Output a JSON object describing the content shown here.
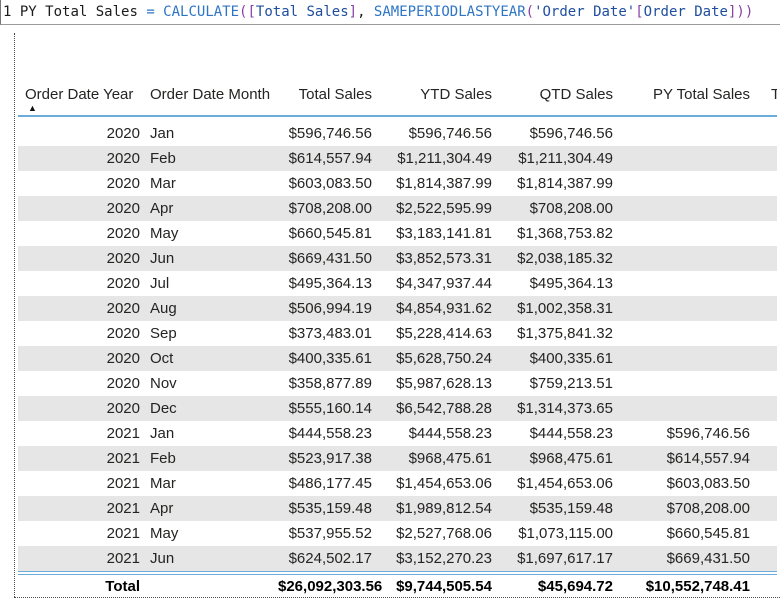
{
  "app": {
    "description": "Power BI DAX formula bar with table visual"
  },
  "formula_bar": {
    "line_number": "1",
    "formula_text": "PY Total Sales = CALCULATE([Total Sales], SAMEPERIODLASTYEAR('Order Date'[Order Date]))",
    "tokens": [
      {
        "t": "PY Total Sales ",
        "c": "text"
      },
      {
        "t": "= ",
        "c": "op"
      },
      {
        "t": "CALCULATE",
        "c": "fn"
      },
      {
        "t": "(",
        "c": "paren"
      },
      {
        "t": "[",
        "c": "paren"
      },
      {
        "t": "Total Sales",
        "c": "ref"
      },
      {
        "t": "]",
        "c": "paren"
      },
      {
        "t": ", ",
        "c": "text"
      },
      {
        "t": "SAMEPERIODLASTYEAR",
        "c": "fn"
      },
      {
        "t": "(",
        "c": "paren"
      },
      {
        "t": "'Order Date'",
        "c": "ref"
      },
      {
        "t": "[",
        "c": "paren"
      },
      {
        "t": "Order Date",
        "c": "ref"
      },
      {
        "t": "]",
        "c": "paren"
      },
      {
        "t": "))",
        "c": "paren"
      }
    ]
  },
  "table": {
    "sort_icon": "▲",
    "columns": [
      {
        "label": "Order Date Year",
        "sorted": "ascending"
      },
      {
        "label": "Order Date Month"
      },
      {
        "label": "Total Sales"
      },
      {
        "label": "YTD Sales"
      },
      {
        "label": "QTD Sales"
      },
      {
        "label": "PY Total Sales"
      },
      {
        "label": "T"
      }
    ],
    "rows": [
      {
        "year": "2020",
        "month": "Jan",
        "total_sales": "$596,746.56",
        "ytd_sales": "$596,746.56",
        "qtd_sales": "$596,746.56",
        "py_total_sales": ""
      },
      {
        "year": "2020",
        "month": "Feb",
        "total_sales": "$614,557.94",
        "ytd_sales": "$1,211,304.49",
        "qtd_sales": "$1,211,304.49",
        "py_total_sales": ""
      },
      {
        "year": "2020",
        "month": "Mar",
        "total_sales": "$603,083.50",
        "ytd_sales": "$1,814,387.99",
        "qtd_sales": "$1,814,387.99",
        "py_total_sales": ""
      },
      {
        "year": "2020",
        "month": "Apr",
        "total_sales": "$708,208.00",
        "ytd_sales": "$2,522,595.99",
        "qtd_sales": "$708,208.00",
        "py_total_sales": ""
      },
      {
        "year": "2020",
        "month": "May",
        "total_sales": "$660,545.81",
        "ytd_sales": "$3,183,141.81",
        "qtd_sales": "$1,368,753.82",
        "py_total_sales": ""
      },
      {
        "year": "2020",
        "month": "Jun",
        "total_sales": "$669,431.50",
        "ytd_sales": "$3,852,573.31",
        "qtd_sales": "$2,038,185.32",
        "py_total_sales": ""
      },
      {
        "year": "2020",
        "month": "Jul",
        "total_sales": "$495,364.13",
        "ytd_sales": "$4,347,937.44",
        "qtd_sales": "$495,364.13",
        "py_total_sales": ""
      },
      {
        "year": "2020",
        "month": "Aug",
        "total_sales": "$506,994.19",
        "ytd_sales": "$4,854,931.62",
        "qtd_sales": "$1,002,358.31",
        "py_total_sales": ""
      },
      {
        "year": "2020",
        "month": "Sep",
        "total_sales": "$373,483.01",
        "ytd_sales": "$5,228,414.63",
        "qtd_sales": "$1,375,841.32",
        "py_total_sales": ""
      },
      {
        "year": "2020",
        "month": "Oct",
        "total_sales": "$400,335.61",
        "ytd_sales": "$5,628,750.24",
        "qtd_sales": "$400,335.61",
        "py_total_sales": ""
      },
      {
        "year": "2020",
        "month": "Nov",
        "total_sales": "$358,877.89",
        "ytd_sales": "$5,987,628.13",
        "qtd_sales": "$759,213.51",
        "py_total_sales": ""
      },
      {
        "year": "2020",
        "month": "Dec",
        "total_sales": "$555,160.14",
        "ytd_sales": "$6,542,788.28",
        "qtd_sales": "$1,314,373.65",
        "py_total_sales": ""
      },
      {
        "year": "2021",
        "month": "Jan",
        "total_sales": "$444,558.23",
        "ytd_sales": "$444,558.23",
        "qtd_sales": "$444,558.23",
        "py_total_sales": "$596,746.56"
      },
      {
        "year": "2021",
        "month": "Feb",
        "total_sales": "$523,917.38",
        "ytd_sales": "$968,475.61",
        "qtd_sales": "$968,475.61",
        "py_total_sales": "$614,557.94"
      },
      {
        "year": "2021",
        "month": "Mar",
        "total_sales": "$486,177.45",
        "ytd_sales": "$1,454,653.06",
        "qtd_sales": "$1,454,653.06",
        "py_total_sales": "$603,083.50"
      },
      {
        "year": "2021",
        "month": "Apr",
        "total_sales": "$535,159.48",
        "ytd_sales": "$1,989,812.54",
        "qtd_sales": "$535,159.48",
        "py_total_sales": "$708,208.00"
      },
      {
        "year": "2021",
        "month": "May",
        "total_sales": "$537,955.52",
        "ytd_sales": "$2,527,768.06",
        "qtd_sales": "$1,073,115.00",
        "py_total_sales": "$660,545.81"
      },
      {
        "year": "2021",
        "month": "Jun",
        "total_sales": "$624,502.17",
        "ytd_sales": "$3,152,270.23",
        "qtd_sales": "$1,697,617.17",
        "py_total_sales": "$669,431.50"
      }
    ],
    "total": {
      "label": "Total",
      "total_sales": "$26,092,303.56",
      "ytd_sales": "$9,744,505.54",
      "qtd_sales": "$45,694.72",
      "py_total_sales": "$10,552,748.41"
    }
  },
  "colors": {
    "header_rule": "#6cacdd",
    "row_band": "#e6e6e6",
    "dax_function": "#2e75c6",
    "dax_paren": "#8a3fa8",
    "dax_reference": "#1f4e9e"
  }
}
